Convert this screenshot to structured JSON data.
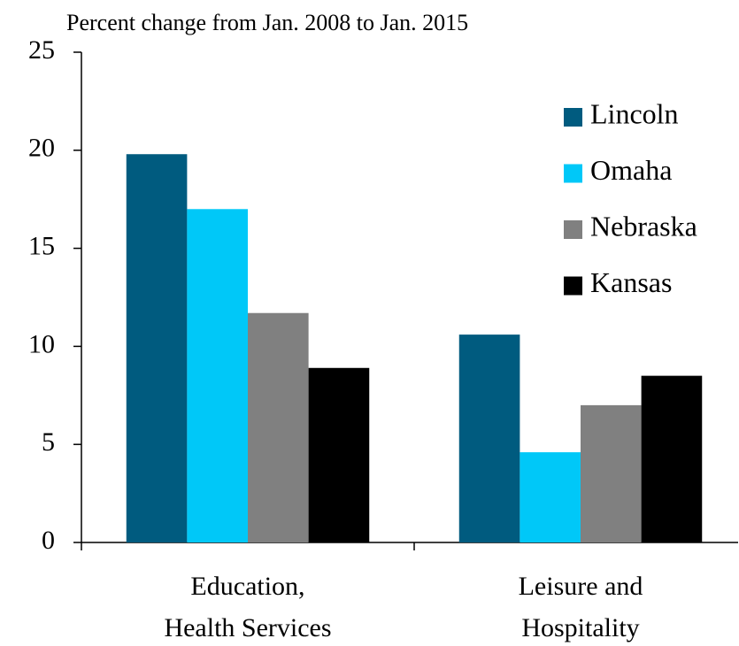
{
  "chart_data": {
    "type": "bar",
    "title": "Percent change from Jan. 2008 to Jan. 2015",
    "categories": [
      "Education,\nHealth Services",
      "Leisure and\nHospitality"
    ],
    "series": [
      {
        "name": "Lincoln",
        "color": "#005b7f",
        "values": [
          19.8,
          10.6
        ]
      },
      {
        "name": "Omaha",
        "color": "#00c8f8",
        "values": [
          17.0,
          4.6
        ]
      },
      {
        "name": "Nebraska",
        "color": "#808080",
        "values": [
          11.7,
          7.0
        ]
      },
      {
        "name": "Kansas",
        "color": "#000000",
        "values": [
          8.9,
          8.5
        ]
      }
    ],
    "ylim": [
      0,
      25
    ],
    "yticks": [
      0,
      5,
      10,
      15,
      20,
      25
    ],
    "grid": false,
    "legend": "top-right"
  }
}
